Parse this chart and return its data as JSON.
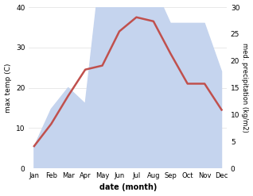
{
  "months": [
    "Jan",
    "Feb",
    "Mar",
    "Apr",
    "May",
    "Jun",
    "Jul",
    "Aug",
    "Sep",
    "Oct",
    "Nov",
    "Dec"
  ],
  "temp": [
    5.5,
    11.0,
    18.0,
    24.5,
    25.5,
    34.0,
    37.5,
    36.5,
    28.5,
    21.0,
    21.0,
    14.5
  ],
  "precip": [
    4.0,
    11.0,
    15.0,
    12.0,
    40.0,
    34.0,
    34.0,
    34.0,
    27.0,
    27.0,
    27.0,
    18.0
  ],
  "temp_color": "#c0504d",
  "precip_color": "#c5d4ee",
  "ylim_left": [
    0,
    40
  ],
  "ylim_right": [
    0,
    30
  ],
  "yticks_left": [
    0,
    10,
    20,
    30,
    40
  ],
  "yticks_right": [
    0,
    5,
    10,
    15,
    20,
    25,
    30
  ],
  "xlabel": "date (month)",
  "ylabel_left": "max temp (C)",
  "ylabel_right": "med. precipitation (kg/m2)",
  "bg_color": "#ffffff",
  "grid_color": "#e0e0e0"
}
